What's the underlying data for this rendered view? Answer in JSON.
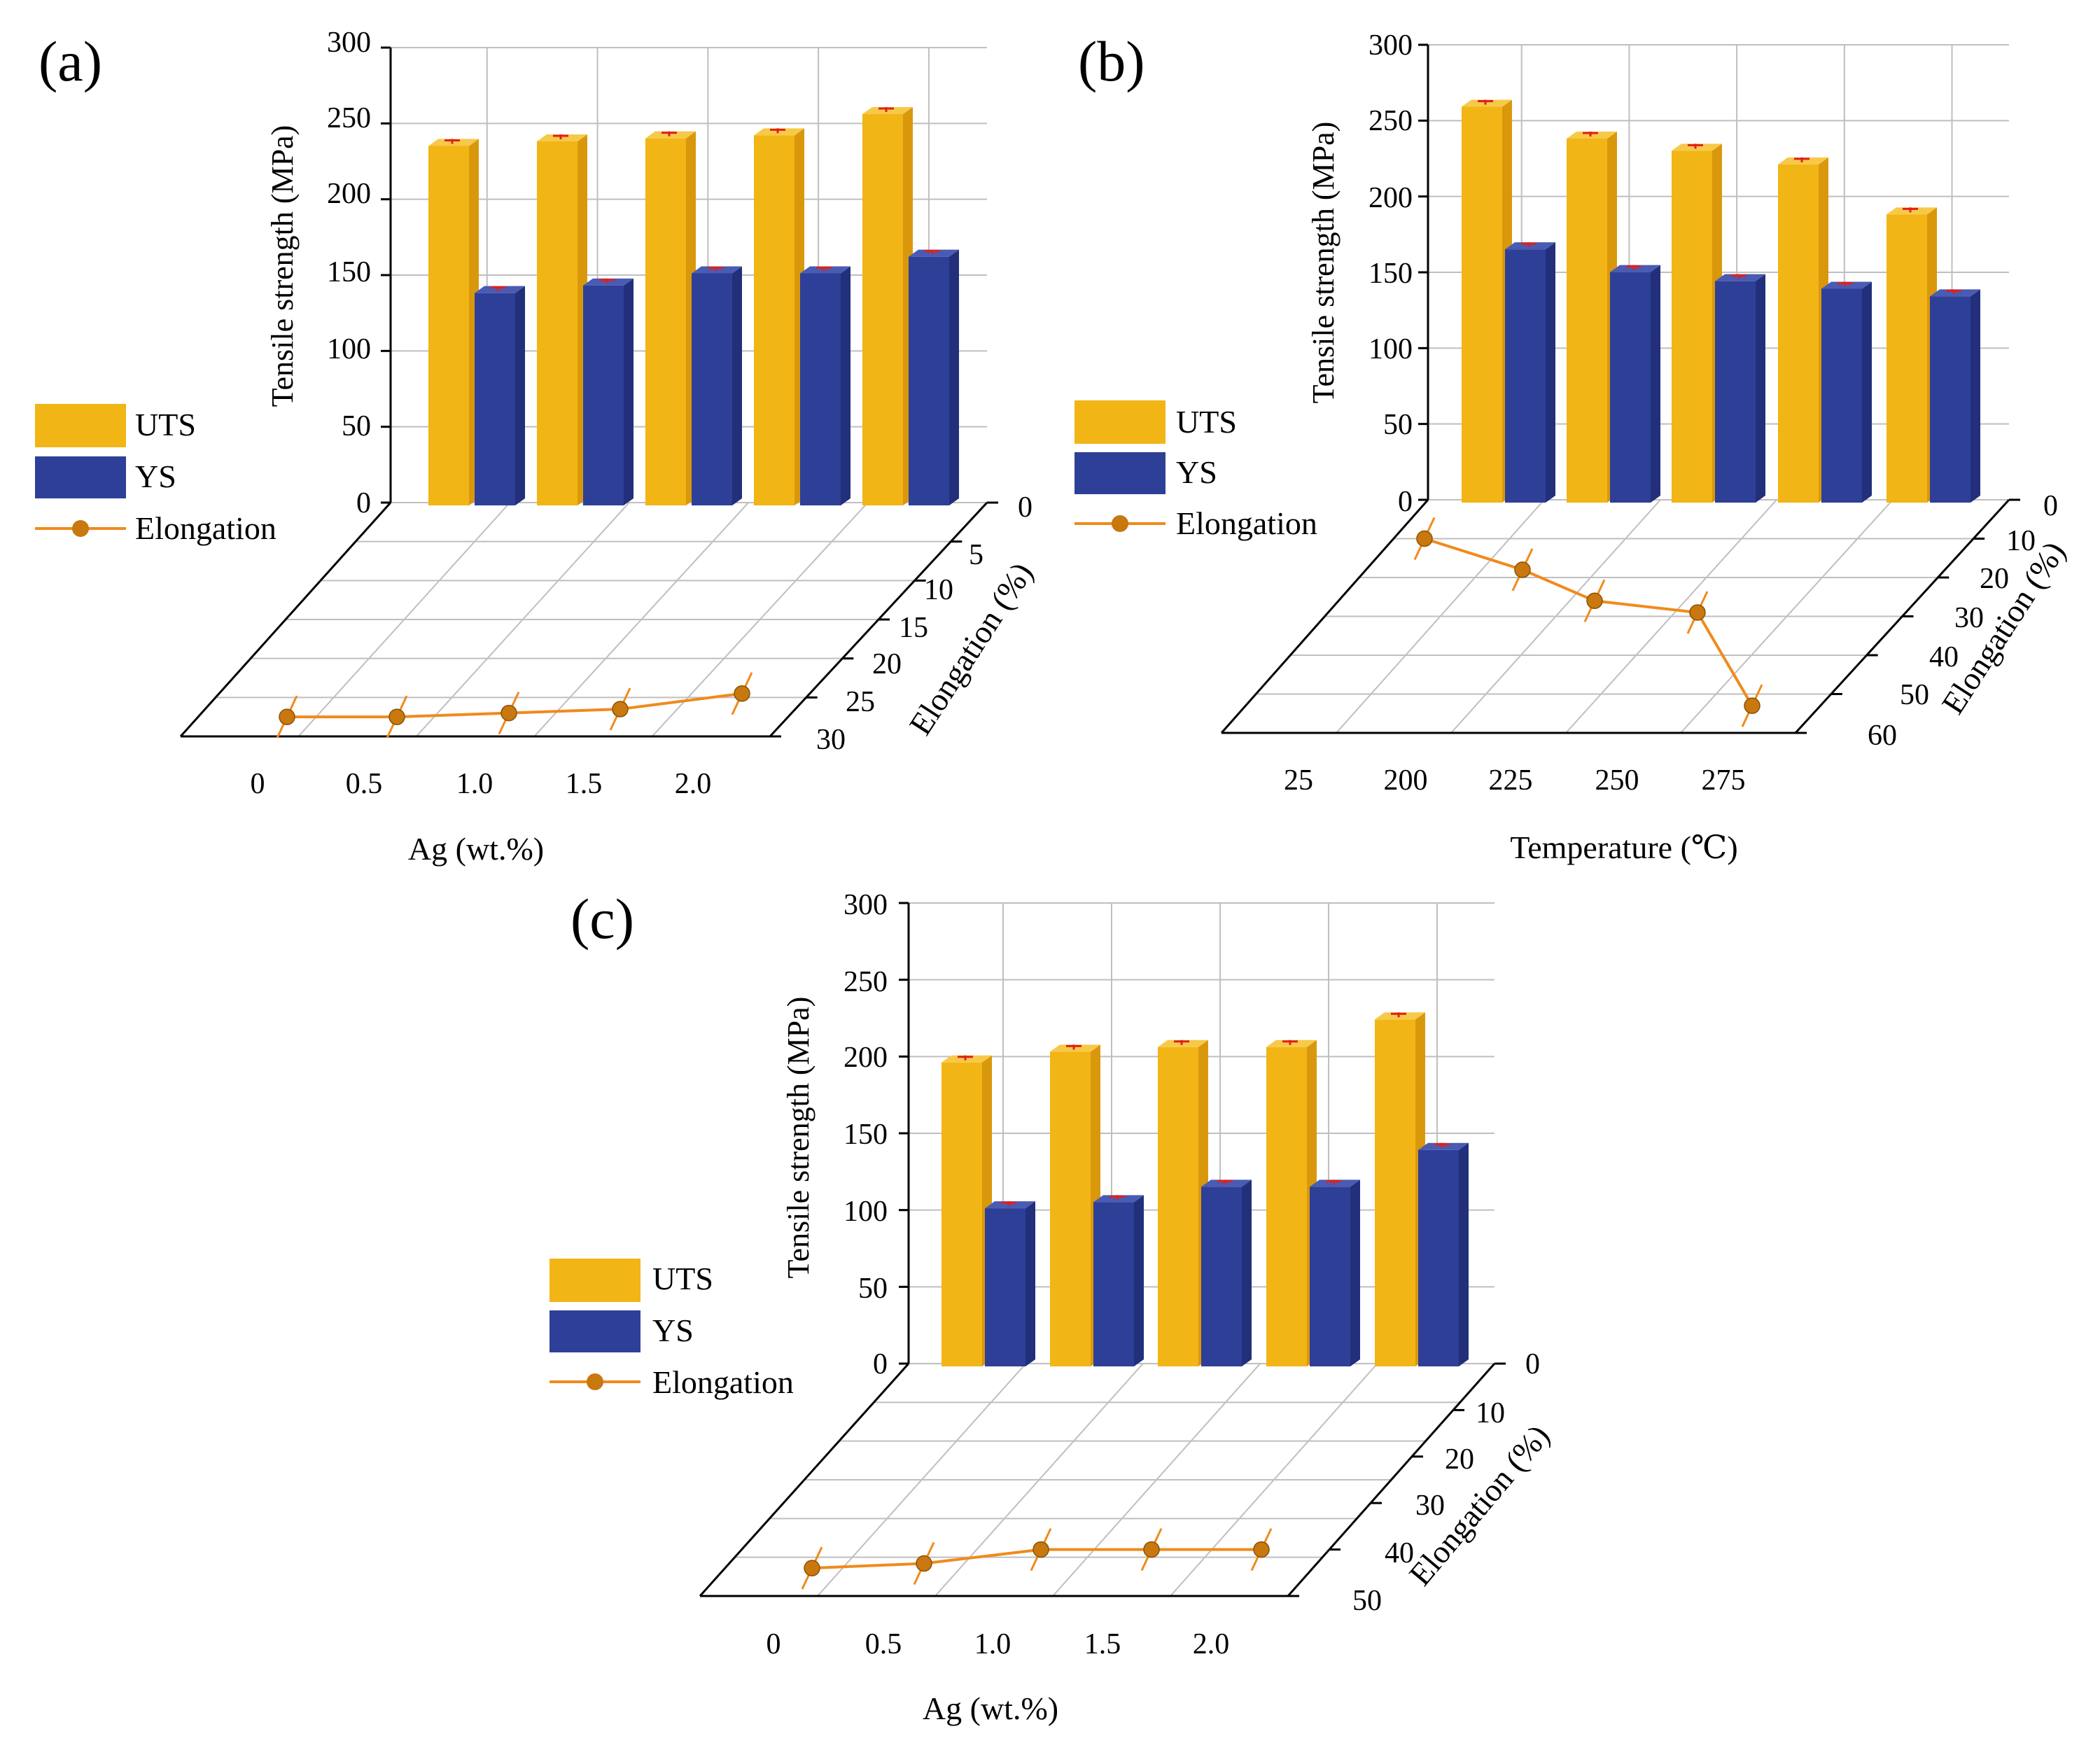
{
  "colors": {
    "uts_front": "#F2B516",
    "uts_side": "#D9980C",
    "uts_top": "#F7C948",
    "ys_front": "#2E3F97",
    "ys_side": "#222F7A",
    "ys_top": "#4A5BB3",
    "elongation": "#F08A1C",
    "marker": "#C8780E",
    "error_bar": "#E0201B",
    "grid": "#BFBFBF",
    "axis": "#000000"
  },
  "legend": {
    "uts": "UTS",
    "ys": "YS",
    "elongation": "Elongation"
  },
  "chart_data": [
    {
      "id": "a",
      "panel_label": "(a)",
      "type": "bar3d_with_line",
      "zlabel": "Tensile strength (MPa)",
      "zticks": [
        "0",
        "50",
        "100",
        "150",
        "200",
        "250",
        "300"
      ],
      "zlim": [
        0,
        300
      ],
      "xlabel": "Ag (wt.%)",
      "xticks": [
        "0",
        "0.5",
        "1.0",
        "1.5",
        "2.0"
      ],
      "ylabel": "Elongation (%)",
      "yticks": [
        "0",
        "5",
        "10",
        "15",
        "20",
        "25",
        "30"
      ],
      "ylim": [
        0,
        30
      ],
      "categories": [
        "0",
        "0.5",
        "1.0",
        "1.5",
        "2.0"
      ],
      "series": [
        {
          "name": "UTS",
          "values": [
            237,
            240,
            242,
            244,
            258
          ]
        },
        {
          "name": "YS",
          "values": [
            140,
            145,
            153,
            153,
            164
          ]
        },
        {
          "name": "Elongation",
          "values": [
            27.5,
            27.5,
            27.0,
            26.5,
            24.5
          ]
        }
      ]
    },
    {
      "id": "b",
      "panel_label": "(b)",
      "type": "bar3d_with_line",
      "zlabel": "Tensile strength (MPa)",
      "zticks": [
        "0",
        "50",
        "100",
        "150",
        "200",
        "250",
        "300"
      ],
      "zlim": [
        0,
        300
      ],
      "xlabel": "Temperature (℃)",
      "xticks": [
        "25",
        "200",
        "225",
        "250",
        "275"
      ],
      "ylabel": "Elongation (%)",
      "yticks": [
        "0",
        "10",
        "20",
        "30",
        "40",
        "50",
        "60"
      ],
      "ylim": [
        0,
        60
      ],
      "categories": [
        "25",
        "200",
        "225",
        "250",
        "275"
      ],
      "series": [
        {
          "name": "UTS",
          "values": [
            261,
            240,
            232,
            223,
            190
          ]
        },
        {
          "name": "YS",
          "values": [
            167,
            152,
            146,
            141,
            136
          ]
        },
        {
          "name": "Elongation",
          "values": [
            10,
            18,
            26,
            29,
            53
          ]
        }
      ]
    },
    {
      "id": "c",
      "panel_label": "(c)",
      "type": "bar3d_with_line",
      "zlabel": "Tensile strength (MPa)",
      "zticks": [
        "0",
        "50",
        "100",
        "150",
        "200",
        "250",
        "300"
      ],
      "zlim": [
        0,
        300
      ],
      "xlabel": "Ag (wt.%)",
      "xticks": [
        "0",
        "0.5",
        "1.0",
        "1.5",
        "2.0"
      ],
      "ylabel": "Elongation (%)",
      "yticks": [
        "0",
        "10",
        "20",
        "30",
        "40",
        "50"
      ],
      "ylim": [
        0,
        50
      ],
      "categories": [
        "0",
        "0.5",
        "1.0",
        "1.5",
        "2.0"
      ],
      "series": [
        {
          "name": "UTS",
          "values": [
            198,
            205,
            208,
            208,
            226
          ]
        },
        {
          "name": "YS",
          "values": [
            103,
            107,
            117,
            117,
            141
          ]
        },
        {
          "name": "Elongation",
          "values": [
            44,
            43,
            40,
            40,
            40
          ]
        }
      ]
    }
  ]
}
